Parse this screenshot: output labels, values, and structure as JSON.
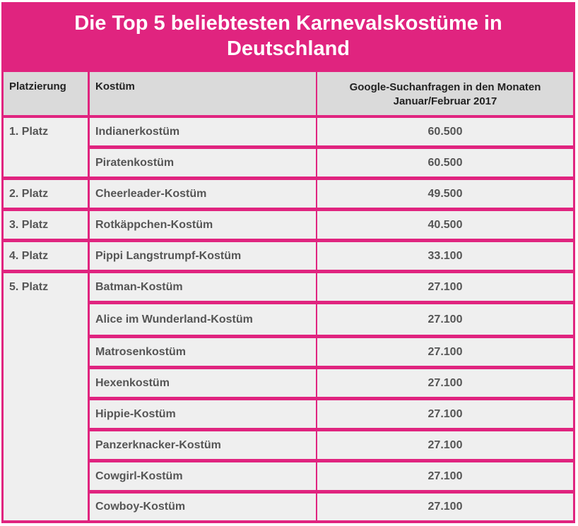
{
  "title": "Die Top 5 beliebtesten Karnevalskostüme in Deutschland",
  "colors": {
    "border": "#e0247f",
    "header_bg": "#dadada",
    "cell_bg": "#efefef",
    "title_text": "#ffffff"
  },
  "chart_data": {
    "type": "table",
    "title": "Die Top 5 beliebtesten Karnevalskostüme in Deutschland",
    "columns": [
      "Platzierung",
      "Kostüm",
      "Google-Suchanfragen in den Monaten Januar/Februar 2017"
    ],
    "rows": [
      {
        "rank": "1. Platz",
        "costume": "Indianerkostüm",
        "searches": "60.500"
      },
      {
        "rank": "",
        "costume": "Piratenkostüm",
        "searches": "60.500"
      },
      {
        "rank": "2. Platz",
        "costume": "Cheerleader-Kostüm",
        "searches": "49.500"
      },
      {
        "rank": "3. Platz",
        "costume": "Rotkäppchen-Kostüm",
        "searches": "40.500"
      },
      {
        "rank": "4. Platz",
        "costume": "Pippi Langstrumpf-Kostüm",
        "searches": "33.100"
      },
      {
        "rank": "5. Platz",
        "costume": "Batman-Kostüm",
        "searches": "27.100"
      },
      {
        "rank": "",
        "costume": "Alice im Wunderland-Kostüm",
        "searches": "27.100"
      },
      {
        "rank": "",
        "costume": "Matrosenkostüm",
        "searches": "27.100"
      },
      {
        "rank": "",
        "costume": "Hexenkostüm",
        "searches": "27.100"
      },
      {
        "rank": "",
        "costume": "Hippie-Kostüm",
        "searches": "27.100"
      },
      {
        "rank": "",
        "costume": "Panzerknacker-Kostüm",
        "searches": "27.100"
      },
      {
        "rank": "",
        "costume": "Cowgirl-Kostüm",
        "searches": "27.100"
      },
      {
        "rank": "",
        "costume": "Cowboy-Kostüm",
        "searches": "27.100"
      }
    ]
  }
}
